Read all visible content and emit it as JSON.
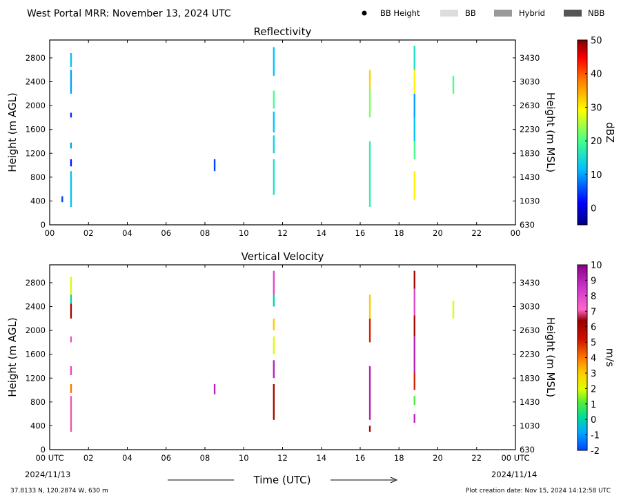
{
  "header": {
    "title": "West Portal MRR:  November 13, 2024 UTC",
    "legend": [
      {
        "label": "BB Height",
        "kind": "dot",
        "color": "#000000"
      },
      {
        "label": "BB",
        "kind": "swatch",
        "color": "#dddddd"
      },
      {
        "label": "Hybrid",
        "kind": "swatch",
        "color": "#999999"
      },
      {
        "label": "NBB",
        "kind": "swatch",
        "color": "#555555"
      }
    ]
  },
  "footer": {
    "coords": "37.8133 N, 120.2874 W, 630 m",
    "created": "Plot creation date: Nov 15, 2024 14:12:58 UTC",
    "xlabel": "Time (UTC)",
    "start_date": "2024/11/13",
    "end_date": "2024/11/14"
  },
  "chart_data": [
    {
      "type": "heatmap",
      "title": "Reflectivity",
      "ylabel_left": "Height (m AGL)",
      "ylabel_right": "Height (m MSL)",
      "colorbar_label": "dBZ",
      "xlim": [
        0,
        24
      ],
      "ylim": [
        0,
        3100
      ],
      "x_ticks": [
        "00",
        "02",
        "04",
        "06",
        "08",
        "10",
        "12",
        "14",
        "16",
        "18",
        "20",
        "22",
        "00"
      ],
      "y_ticks": [
        0,
        400,
        800,
        1200,
        1600,
        2000,
        2400,
        2800
      ],
      "y_ticks_right": [
        "630",
        "1030",
        "1430",
        "1830",
        "2230",
        "2630",
        "3030",
        "3430"
      ],
      "colorbar_range": [
        -5,
        50
      ],
      "colorbar_ticks": [
        "0",
        "10",
        "20",
        "30",
        "40",
        "50"
      ],
      "colorbar_tick_values": [
        0,
        10,
        20,
        30,
        40,
        50
      ],
      "echoes": [
        {
          "t": 0.65,
          "h0": 380,
          "h1": 480,
          "v": 5
        },
        {
          "t": 1.1,
          "h0": 300,
          "h1": 900,
          "v": 12
        },
        {
          "t": 1.1,
          "h0": 980,
          "h1": 1100,
          "v": 3
        },
        {
          "t": 1.1,
          "h0": 1280,
          "h1": 1380,
          "v": 10
        },
        {
          "t": 1.1,
          "h0": 1800,
          "h1": 1880,
          "v": 4
        },
        {
          "t": 1.1,
          "h0": 2200,
          "h1": 2600,
          "v": 10
        },
        {
          "t": 1.1,
          "h0": 2650,
          "h1": 2880,
          "v": 12
        },
        {
          "t": 8.5,
          "h0": 900,
          "h1": 1100,
          "v": 5
        },
        {
          "t": 11.55,
          "h0": 500,
          "h1": 1100,
          "v": 16
        },
        {
          "t": 11.55,
          "h0": 1200,
          "h1": 1500,
          "v": 14
        },
        {
          "t": 11.55,
          "h0": 1550,
          "h1": 1900,
          "v": 12
        },
        {
          "t": 11.55,
          "h0": 1950,
          "h1": 2250,
          "v": 20
        },
        {
          "t": 11.55,
          "h0": 2500,
          "h1": 2980,
          "v": 12
        },
        {
          "t": 16.5,
          "h0": 300,
          "h1": 1400,
          "v": 18
        },
        {
          "t": 16.5,
          "h0": 1800,
          "h1": 2300,
          "v": 23
        },
        {
          "t": 16.5,
          "h0": 2300,
          "h1": 2600,
          "v": 32
        },
        {
          "t": 18.8,
          "h0": 420,
          "h1": 900,
          "v": 30
        },
        {
          "t": 18.8,
          "h0": 1100,
          "h1": 1400,
          "v": 20
        },
        {
          "t": 18.8,
          "h0": 1400,
          "h1": 1800,
          "v": 12
        },
        {
          "t": 18.8,
          "h0": 1800,
          "h1": 2200,
          "v": 10
        },
        {
          "t": 18.8,
          "h0": 2200,
          "h1": 2600,
          "v": 30
        },
        {
          "t": 18.8,
          "h0": 2600,
          "h1": 3000,
          "v": 16
        },
        {
          "t": 20.8,
          "h0": 2200,
          "h1": 2500,
          "v": 20
        }
      ]
    },
    {
      "type": "heatmap",
      "title": "Vertical Velocity",
      "ylabel_left": "Height (m AGL)",
      "ylabel_right": "Height (m MSL)",
      "colorbar_label": "m/s",
      "xlim": [
        0,
        24
      ],
      "ylim": [
        0,
        3100
      ],
      "x_ticks": [
        "00 UTC",
        "02",
        "04",
        "06",
        "08",
        "10",
        "12",
        "14",
        "16",
        "18",
        "20",
        "22",
        "00 UTC"
      ],
      "y_ticks": [
        0,
        400,
        800,
        1200,
        1600,
        2000,
        2400,
        2800
      ],
      "y_ticks_right": [
        "630",
        "1030",
        "1430",
        "1830",
        "2230",
        "2630",
        "3030",
        "3430"
      ],
      "colorbar_range": [
        -2,
        10
      ],
      "colorbar_ticks": [
        "-2",
        "-1",
        "0",
        "1",
        "2",
        "3",
        "4",
        "5",
        "6",
        "7",
        "8",
        "9",
        "10"
      ],
      "colorbar_tick_values": [
        -2,
        -1,
        0,
        1,
        2,
        3,
        4,
        5,
        6,
        7,
        8,
        9,
        10
      ],
      "echoes": [
        {
          "t": 1.1,
          "h0": 300,
          "h1": 900,
          "v": 7
        },
        {
          "t": 1.1,
          "h0": 950,
          "h1": 1100,
          "v": 4
        },
        {
          "t": 1.1,
          "h0": 1250,
          "h1": 1400,
          "v": 8
        },
        {
          "t": 1.1,
          "h0": 1800,
          "h1": 1900,
          "v": 7
        },
        {
          "t": 1.1,
          "h0": 2200,
          "h1": 2450,
          "v": 6
        },
        {
          "t": 1.1,
          "h0": 2450,
          "h1": 2600,
          "v": 0
        },
        {
          "t": 1.1,
          "h0": 2600,
          "h1": 2900,
          "v": 2
        },
        {
          "t": 8.5,
          "h0": 930,
          "h1": 1100,
          "v": 9
        },
        {
          "t": 11.55,
          "h0": 500,
          "h1": 1100,
          "v": 6
        },
        {
          "t": 11.55,
          "h0": 1200,
          "h1": 1500,
          "v": 9
        },
        {
          "t": 11.55,
          "h0": 1600,
          "h1": 1900,
          "v": 2
        },
        {
          "t": 11.55,
          "h0": 2000,
          "h1": 2200,
          "v": 3
        },
        {
          "t": 11.55,
          "h0": 2400,
          "h1": 2600,
          "v": 0
        },
        {
          "t": 11.55,
          "h0": 2600,
          "h1": 3000,
          "v": 8
        },
        {
          "t": 16.5,
          "h0": 300,
          "h1": 400,
          "v": 6
        },
        {
          "t": 16.5,
          "h0": 500,
          "h1": 1400,
          "v": 9
        },
        {
          "t": 16.5,
          "h0": 1800,
          "h1": 2200,
          "v": 5
        },
        {
          "t": 16.5,
          "h0": 2200,
          "h1": 2600,
          "v": 3
        },
        {
          "t": 18.8,
          "h0": 450,
          "h1": 600,
          "v": 9
        },
        {
          "t": 18.8,
          "h0": 750,
          "h1": 900,
          "v": 1
        },
        {
          "t": 18.8,
          "h0": 1000,
          "h1": 1300,
          "v": 5
        },
        {
          "t": 18.8,
          "h0": 1300,
          "h1": 1900,
          "v": 9
        },
        {
          "t": 18.8,
          "h0": 1900,
          "h1": 2250,
          "v": 6
        },
        {
          "t": 18.8,
          "h0": 2250,
          "h1": 2700,
          "v": 8
        },
        {
          "t": 18.8,
          "h0": 2700,
          "h1": 3000,
          "v": 6
        },
        {
          "t": 20.8,
          "h0": 2200,
          "h1": 2500,
          "v": 2
        }
      ]
    }
  ]
}
